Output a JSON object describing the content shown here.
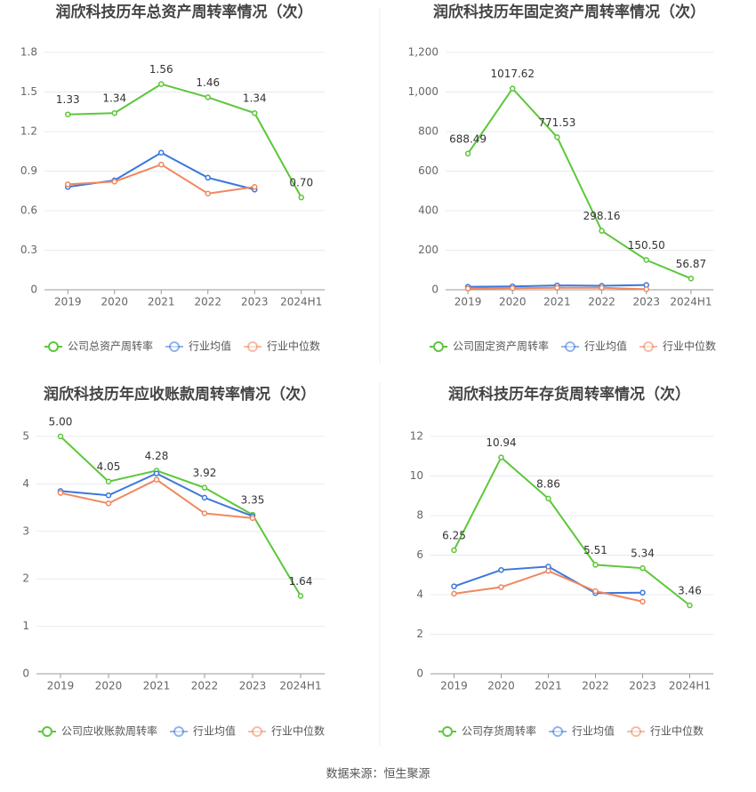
{
  "chart_data": [
    {
      "type": "line",
      "title": "润欣科技历年总资产周转率情况（次）",
      "categories": [
        "2019",
        "2020",
        "2021",
        "2022",
        "2023",
        "2024H1"
      ],
      "ylim": [
        0,
        1.8
      ],
      "yticks": [
        0,
        0.3,
        0.6,
        0.9,
        1.2,
        1.5,
        1.8
      ],
      "grid": true,
      "series": [
        {
          "name": "公司总资产周转率",
          "color": "#5cc73a",
          "values": [
            1.33,
            1.34,
            1.56,
            1.46,
            1.34,
            0.7
          ],
          "value_labels": [
            "1.33",
            "1.34",
            "1.56",
            "1.46",
            "1.34",
            "0.70"
          ]
        },
        {
          "name": "行业均值",
          "color": "#3b77db",
          "values": [
            0.78,
            0.83,
            1.04,
            0.85,
            0.76,
            null
          ]
        },
        {
          "name": "行业中位数",
          "color": "#f0875f",
          "values": [
            0.8,
            0.82,
            0.95,
            0.73,
            0.78,
            null
          ]
        }
      ]
    },
    {
      "type": "line",
      "title": "润欣科技历年固定资产周转率情况（次）",
      "categories": [
        "2019",
        "2020",
        "2021",
        "2022",
        "2023",
        "2024H1"
      ],
      "ylim": [
        0,
        1200
      ],
      "yticks": [
        0,
        200,
        400,
        600,
        800,
        {
          "value": 1000,
          "label": "1,000"
        },
        {
          "value": 1200,
          "label": "1,200"
        }
      ],
      "grid": true,
      "series": [
        {
          "name": "公司固定资产周转率",
          "color": "#5cc73a",
          "values": [
            688.49,
            1017.62,
            771.53,
            298.16,
            150.5,
            56.87
          ],
          "value_labels": [
            "688.49",
            "1017.62",
            "771.53",
            "298.16",
            "150.50",
            "56.87"
          ]
        },
        {
          "name": "行业均值",
          "color": "#3b77db",
          "values": [
            15,
            17,
            22,
            20,
            24,
            null
          ]
        },
        {
          "name": "行业中位数",
          "color": "#f0875f",
          "values": [
            6,
            8,
            10,
            10,
            3,
            null
          ]
        }
      ]
    },
    {
      "type": "line",
      "title": "润欣科技历年应收账款周转率情况（次）",
      "categories": [
        "2019",
        "2020",
        "2021",
        "2022",
        "2023",
        "2024H1"
      ],
      "ylim": [
        0,
        5
      ],
      "yticks": [
        0,
        1,
        2,
        3,
        4,
        5
      ],
      "grid": true,
      "series": [
        {
          "name": "公司应收账款周转率",
          "color": "#5cc73a",
          "values": [
            5.0,
            4.05,
            4.28,
            3.92,
            3.35,
            1.64
          ],
          "value_labels": [
            "5.00",
            "4.05",
            "4.28",
            "3.92",
            "3.35",
            "1.64"
          ]
        },
        {
          "name": "行业均值",
          "color": "#3b77db",
          "values": [
            3.85,
            3.76,
            4.22,
            3.71,
            3.32,
            null
          ]
        },
        {
          "name": "行业中位数",
          "color": "#f0875f",
          "values": [
            3.81,
            3.59,
            4.09,
            3.38,
            3.28,
            null
          ]
        }
      ]
    },
    {
      "type": "line",
      "title": "润欣科技历年存货周转率情况（次）",
      "categories": [
        "2019",
        "2020",
        "2021",
        "2022",
        "2023",
        "2024H1"
      ],
      "ylim": [
        0,
        12
      ],
      "yticks": [
        0,
        2,
        4,
        6,
        8,
        10,
        12
      ],
      "grid": true,
      "series": [
        {
          "name": "公司存货周转率",
          "color": "#5cc73a",
          "values": [
            6.25,
            10.94,
            8.86,
            5.51,
            5.34,
            3.46
          ],
          "value_labels": [
            "6.25",
            "10.94",
            "8.86",
            "5.51",
            "5.34",
            "3.46"
          ]
        },
        {
          "name": "行业均值",
          "color": "#3b77db",
          "values": [
            4.42,
            5.25,
            5.42,
            4.08,
            4.1,
            null
          ]
        },
        {
          "name": "行业中位数",
          "color": "#f0875f",
          "values": [
            4.05,
            4.38,
            5.2,
            4.18,
            3.65,
            null
          ]
        }
      ]
    }
  ],
  "source": "数据来源：恒生聚源"
}
